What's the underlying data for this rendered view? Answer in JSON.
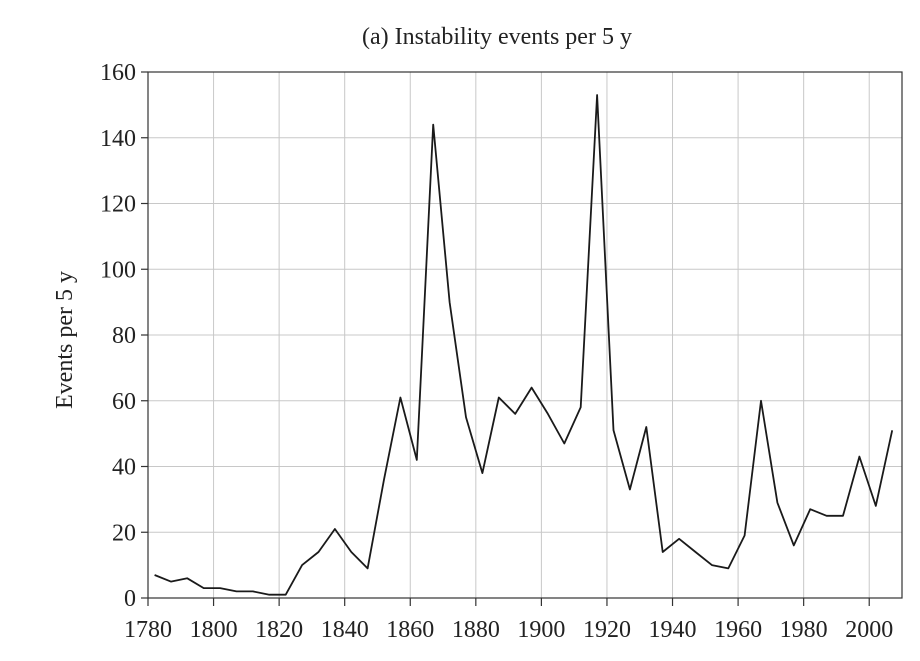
{
  "chart_data": {
    "type": "line",
    "title": "(a) Instability events per 5 y",
    "xlabel": "",
    "ylabel": "Events per 5 y",
    "xlim": [
      1780,
      2010
    ],
    "ylim": [
      0,
      160
    ],
    "x_ticks": [
      1780,
      1800,
      1820,
      1840,
      1860,
      1880,
      1900,
      1920,
      1940,
      1960,
      1980,
      2000
    ],
    "y_ticks": [
      0,
      20,
      40,
      60,
      80,
      100,
      120,
      140,
      160
    ],
    "grid": true,
    "series": [
      {
        "x": [
          1782,
          1787,
          1792,
          1797,
          1802,
          1807,
          1812,
          1817,
          1822,
          1827,
          1832,
          1837,
          1842,
          1847,
          1852,
          1857,
          1862,
          1867,
          1872,
          1877,
          1882,
          1887,
          1892,
          1897,
          1902,
          1907,
          1912,
          1917,
          1922,
          1927,
          1932,
          1937,
          1942,
          1947,
          1952,
          1957,
          1962,
          1967,
          1972,
          1977,
          1982,
          1987,
          1992,
          1997,
          2002,
          2007
        ],
        "values": [
          7,
          5,
          6,
          3,
          3,
          2,
          2,
          1,
          1,
          10,
          14,
          21,
          14,
          9,
          36,
          61,
          42,
          144,
          90,
          55,
          38,
          61,
          56,
          64,
          56,
          47,
          58,
          153,
          51,
          33,
          52,
          14,
          18,
          14,
          10,
          9,
          19,
          60,
          29,
          16,
          27,
          25,
          25,
          43,
          28,
          51
        ]
      }
    ]
  },
  "colors": {
    "line": "#1a1a1a",
    "grid": "#c8c8c8",
    "axis": "#333333",
    "text": "#222222"
  }
}
